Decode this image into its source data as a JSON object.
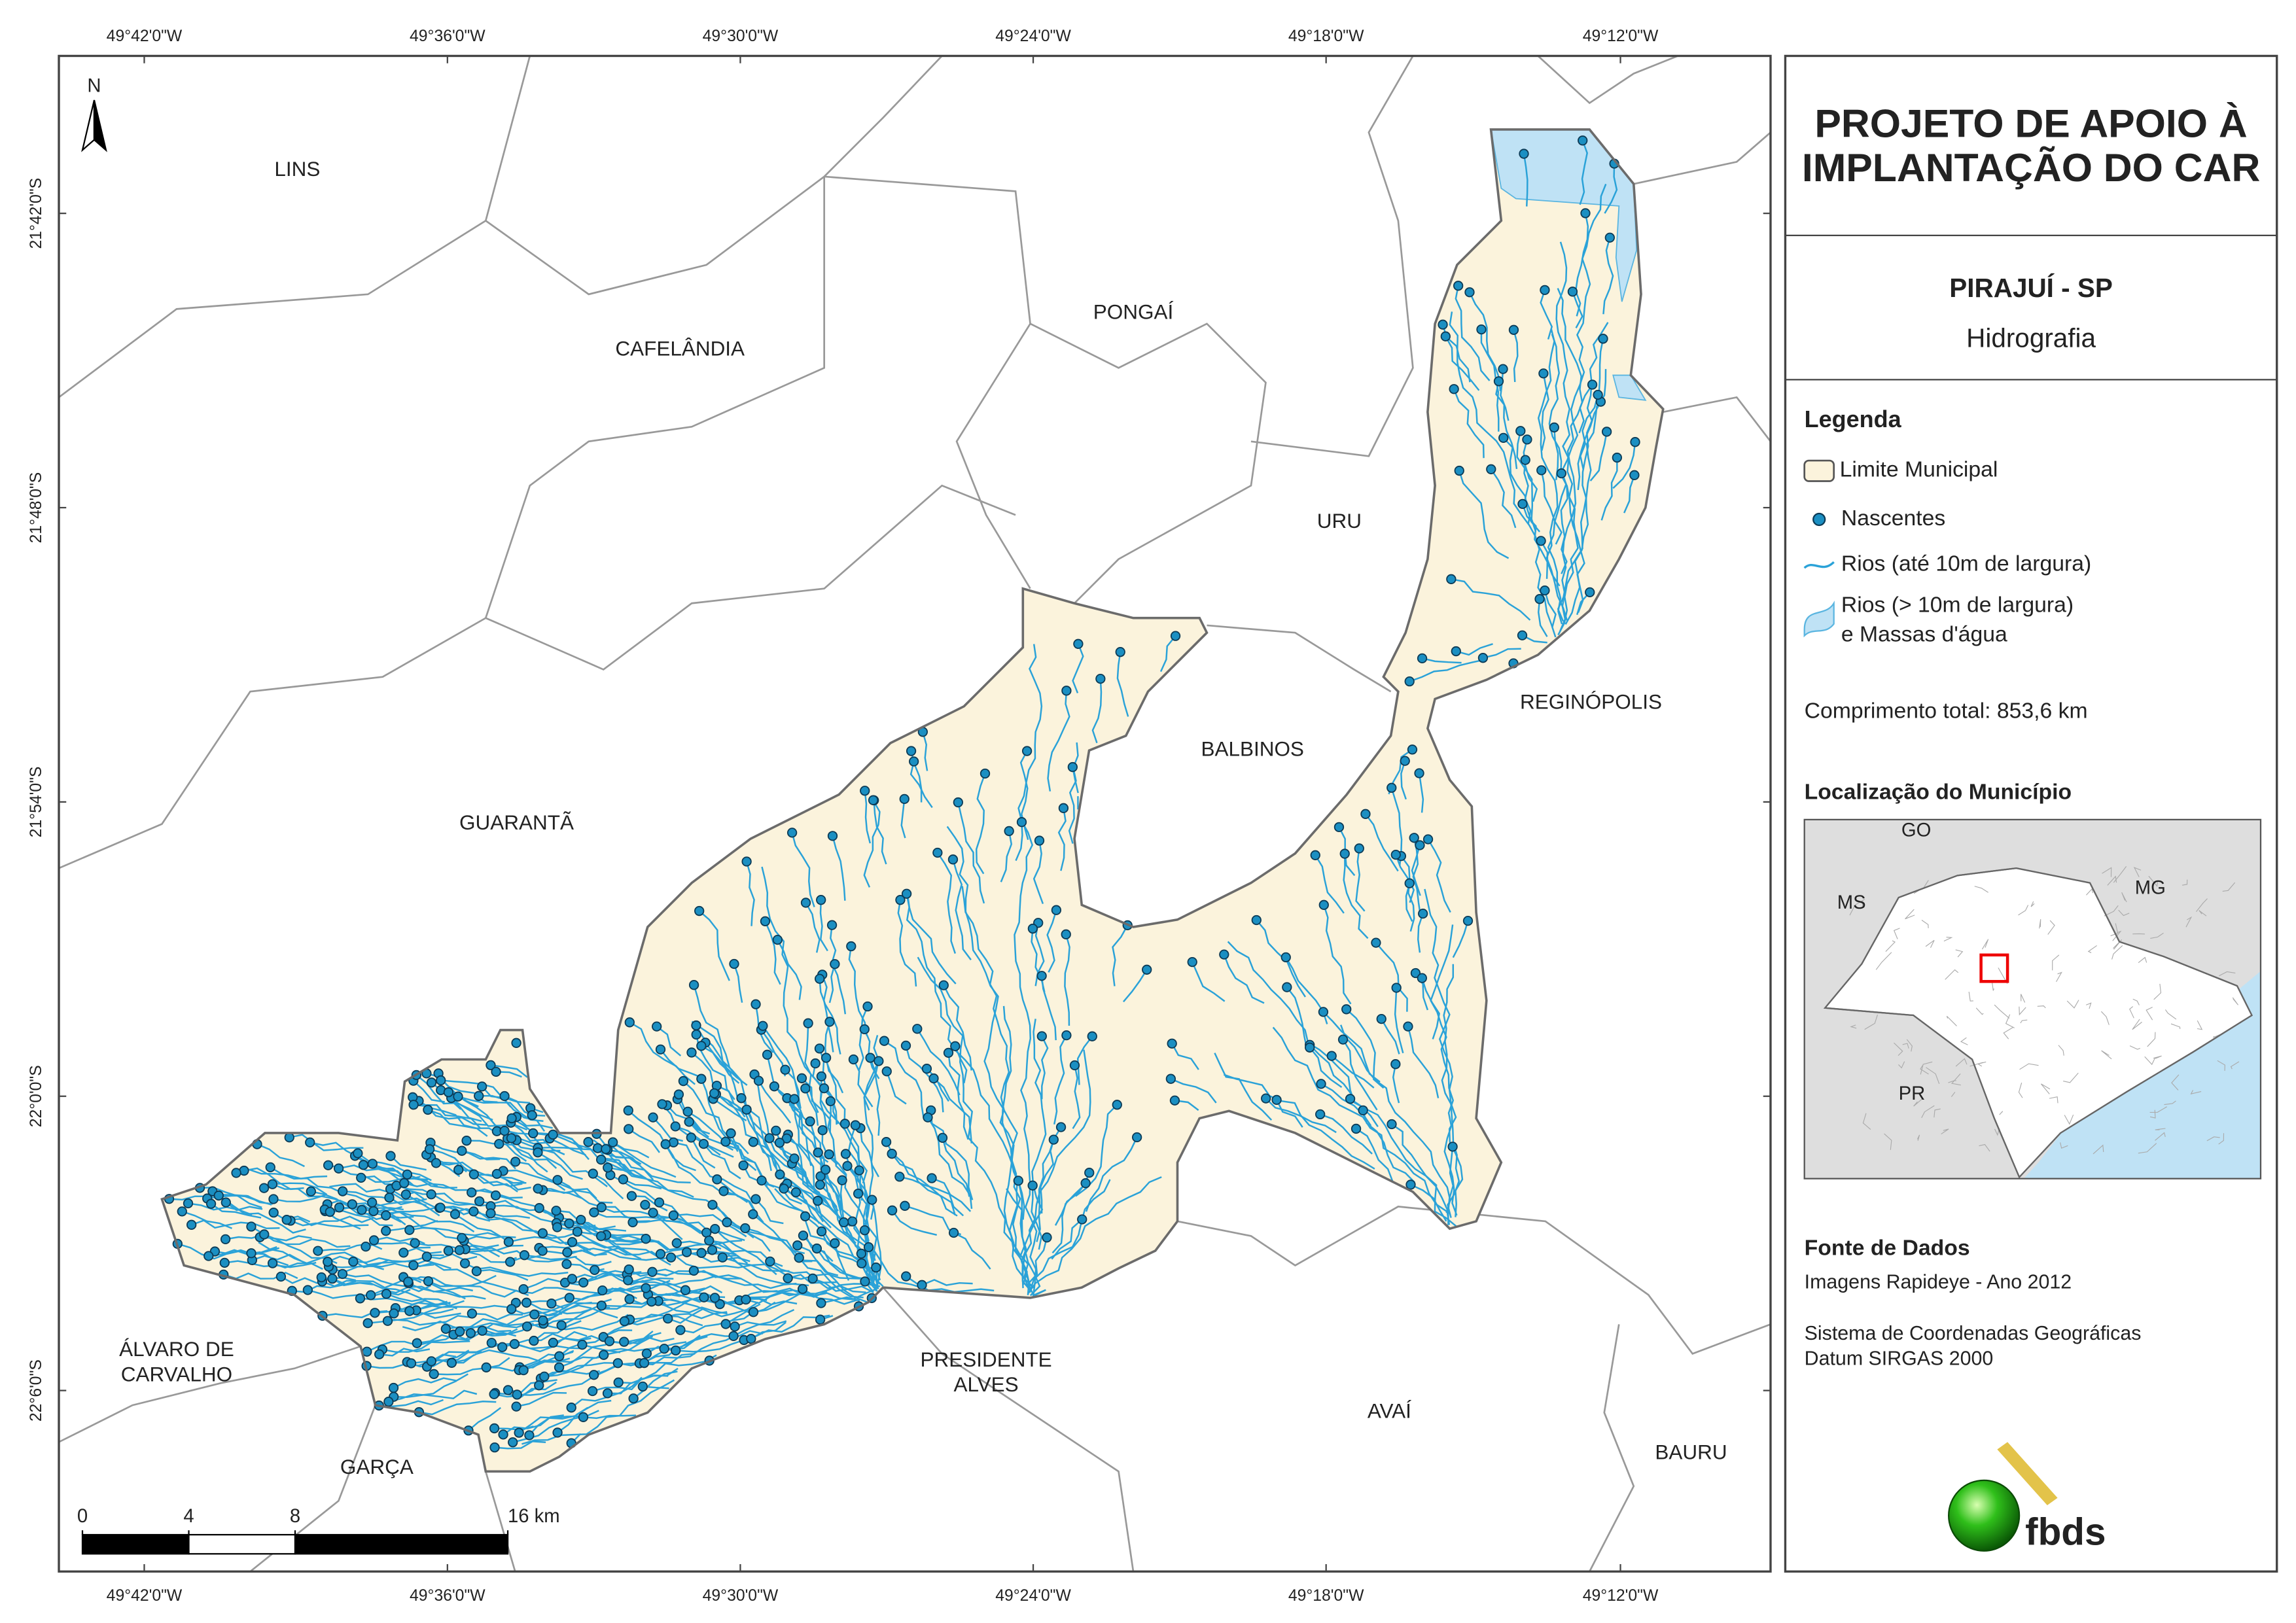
{
  "map": {
    "lon_labels": [
      "49°42'0\"W",
      "49°36'0\"W",
      "49°30'0\"W",
      "49°24'0\"W",
      "49°18'0\"W",
      "49°12'0\"W"
    ],
    "lat_labels": [
      "21°42'0\"S",
      "21°48'0\"S",
      "21°54'0\"S",
      "22°0'0\"S",
      "22°6'0\"S"
    ],
    "north": "N",
    "places": [
      [
        "LINS"
      ],
      [
        "CAFELÂNDIA"
      ],
      [
        "PONGAÍ"
      ],
      [
        "URU"
      ],
      [
        "BALBINOS"
      ],
      [
        "REGINÓPOLIS"
      ],
      [
        "GUARANTÃ"
      ],
      [
        "ÁLVARO DE",
        "CARVALHO"
      ],
      [
        "GARÇA"
      ],
      [
        "PRESIDENTE",
        "ALVES"
      ],
      [
        "AVAÍ"
      ],
      [
        "BAURU"
      ]
    ],
    "scale_ticks": [
      0,
      4,
      8,
      {
        "value": 16,
        "label": "16 km"
      }
    ]
  },
  "panel": {
    "title_lines": [
      "PROJETO DE APOIO À",
      "IMPLANTAÇÃO DO CAR"
    ],
    "municipality": "PIRAJUÍ - SP",
    "theme": "Hidrografia",
    "legend": {
      "title": "Legenda",
      "items": [
        [
          "Limite Municipal"
        ],
        [
          "Nascentes"
        ],
        [
          "Rios (até 10m de largura)"
        ],
        [
          "Rios (> 10m de largura)",
          "e Massas d'água"
        ]
      ]
    },
    "total_length": "Comprimento total: 853,6 km",
    "location_title": "Localização do Município",
    "location_labels": [
      "GO",
      "MS",
      "MG",
      "PR"
    ],
    "source_title": "Fonte de Dados",
    "source_lines": [
      "Imagens Rapideye - Ano 2012",
      "Sistema de Coordenadas Geográficas",
      "Datum SIRGAS 2000"
    ],
    "logo": "fbds"
  }
}
